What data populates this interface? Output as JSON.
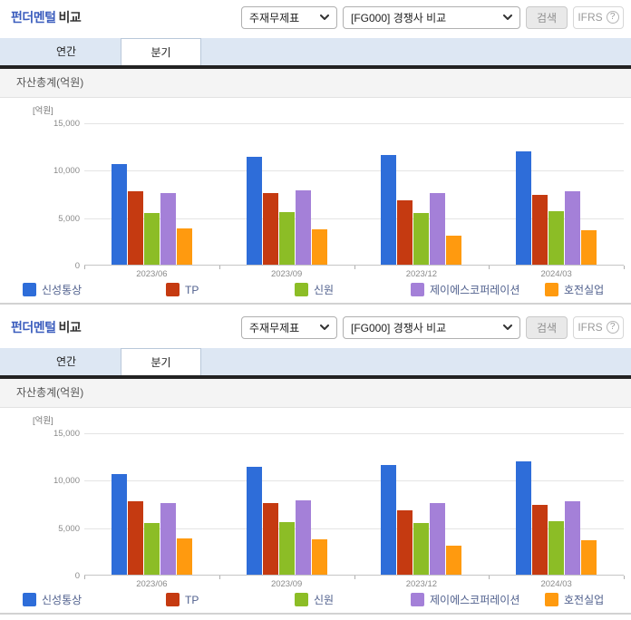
{
  "panels": [
    {
      "header": {
        "title_accent": "펀더멘털",
        "title_rest": "비교",
        "statement_select_value": "주재무제표",
        "comparison_select_value": "[FG000] 경쟁사 비교",
        "search_button": "검색",
        "ifrs_label": "IFRS",
        "ifrs_help_icon": "?"
      },
      "tabs": [
        {
          "label": "연간",
          "selected": false
        },
        {
          "label": "분기",
          "selected": true
        }
      ],
      "section_title": "자산총계(억원)"
    },
    {
      "header": {
        "title_accent": "펀더멘털",
        "title_rest": "비교",
        "statement_select_value": "주재무제표",
        "comparison_select_value": "[FG000] 경쟁사 비교",
        "search_button": "검색",
        "ifrs_label": "IFRS",
        "ifrs_help_icon": "?"
      },
      "tabs": [
        {
          "label": "연간",
          "selected": false
        },
        {
          "label": "분기",
          "selected": true
        }
      ],
      "section_title": "자산총계(억원)"
    }
  ],
  "chart_data": [
    {
      "type": "bar",
      "title": "자산총계(억원)",
      "unit_label": "[억원]",
      "categories": [
        "2023/06",
        "2023/09",
        "2023/12",
        "2024/03"
      ],
      "series": [
        {
          "name": "신성통상",
          "color": "#2e6dd9",
          "values": [
            10600,
            11400,
            11600,
            11900
          ]
        },
        {
          "name": "TP",
          "color": "#c53a11",
          "values": [
            7700,
            7500,
            6800,
            7400
          ]
        },
        {
          "name": "신원",
          "color": "#8cbd26",
          "values": [
            5400,
            5500,
            5400,
            5600
          ]
        },
        {
          "name": "제이에스코퍼레이션",
          "color": "#a480d8",
          "values": [
            7500,
            7800,
            7500,
            7700
          ]
        },
        {
          "name": "호전실업",
          "color": "#ff9a0f",
          "values": [
            3800,
            3700,
            3100,
            3600
          ]
        }
      ],
      "ylim": [
        0,
        15000
      ],
      "yticks": [
        0,
        5000,
        10000,
        15000
      ],
      "grid": true,
      "legend_position": "bottom"
    },
    {
      "type": "bar",
      "title": "자산총계(억원)",
      "unit_label": "[억원]",
      "categories": [
        "2023/06",
        "2023/09",
        "2023/12",
        "2024/03"
      ],
      "series": [
        {
          "name": "신성통상",
          "color": "#2e6dd9",
          "values": [
            10600,
            11400,
            11600,
            11900
          ]
        },
        {
          "name": "TP",
          "color": "#c53a11",
          "values": [
            7700,
            7500,
            6800,
            7400
          ]
        },
        {
          "name": "신원",
          "color": "#8cbd26",
          "values": [
            5400,
            5500,
            5400,
            5600
          ]
        },
        {
          "name": "제이에스코퍼레이션",
          "color": "#a480d8",
          "values": [
            7500,
            7800,
            7500,
            7700
          ]
        },
        {
          "name": "호전실업",
          "color": "#ff9a0f",
          "values": [
            3800,
            3700,
            3100,
            3600
          ]
        }
      ],
      "ylim": [
        0,
        15000
      ],
      "yticks": [
        0,
        5000,
        10000,
        15000
      ],
      "grid": true,
      "legend_position": "bottom"
    }
  ],
  "colors": {
    "title_accent": "#3b5dbd",
    "tabbar_bg": "#dde7f3",
    "dark_divider": "#222222",
    "section_bar_bg": "#f4f4f4",
    "legend_text": "#51618e"
  }
}
